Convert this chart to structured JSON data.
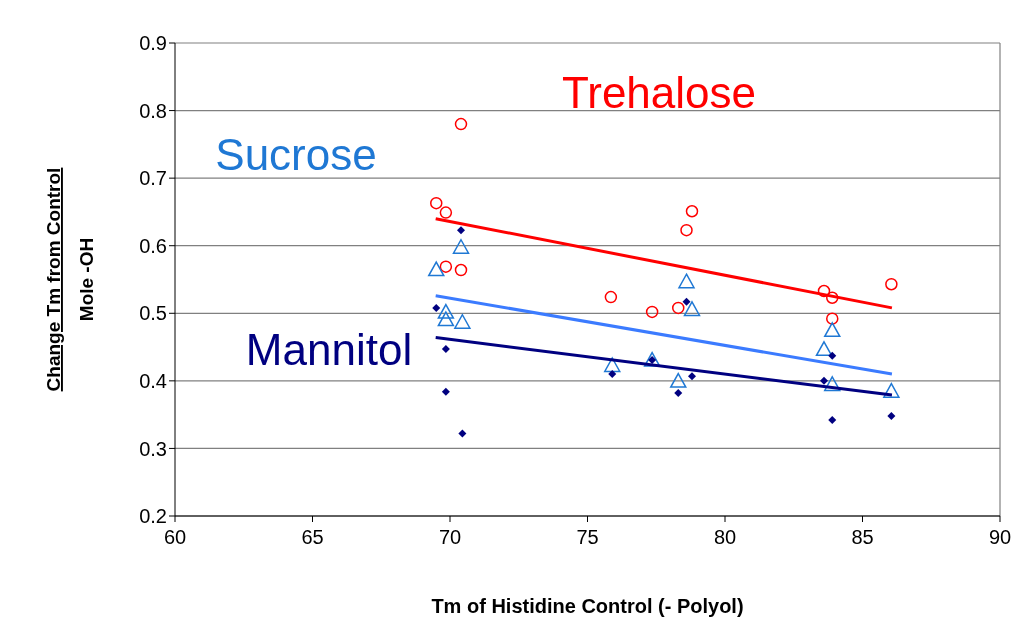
{
  "chart_data": {
    "type": "scatter",
    "xlabel": "Tm of Histidine Control (- Polyol)",
    "ylabel": "Change Tm from Control\nMole -OH",
    "xlim": [
      60,
      90
    ],
    "xticks": [
      60,
      65,
      70,
      75,
      80,
      85,
      90
    ],
    "ylim": [
      0.2,
      0.9
    ],
    "yticks": [
      0.2,
      0.3,
      0.4,
      0.5,
      0.6,
      0.7,
      0.8,
      0.9
    ],
    "grid": "y",
    "legend": false,
    "series": [
      {
        "name": "Trehalose",
        "color": "#ff0000",
        "marker": "circle",
        "x": [
          69.5,
          69.85,
          70.4,
          69.85,
          70.4,
          78.8,
          78.6,
          75.85,
          77.35,
          78.3,
          83.6,
          83.9,
          83.9,
          86.05
        ],
        "values": [
          0.663,
          0.649,
          0.78,
          0.569,
          0.564,
          0.651,
          0.623,
          0.524,
          0.502,
          0.508,
          0.533,
          0.523,
          0.492,
          0.543
        ]
      },
      {
        "name": "Sucrose",
        "color": "#1f78d4",
        "marker": "triangle",
        "x": [
          69.5,
          70.4,
          69.85,
          69.85,
          70.45,
          78.6,
          78.8,
          75.9,
          77.35,
          78.3,
          83.9,
          83.6,
          83.9,
          86.05
        ],
        "values": [
          0.564,
          0.597,
          0.501,
          0.49,
          0.486,
          0.546,
          0.505,
          0.422,
          0.43,
          0.399,
          0.474,
          0.446,
          0.394,
          0.384
        ]
      },
      {
        "name": "Mannitol",
        "color": "#000080",
        "marker": "diamond",
        "x": [
          70.4,
          69.5,
          69.85,
          69.85,
          70.45,
          78.6,
          75.9,
          77.35,
          78.3,
          78.8,
          83.9,
          83.6,
          83.9,
          86.05
        ],
        "values": [
          0.623,
          0.508,
          0.447,
          0.384,
          0.322,
          0.517,
          0.41,
          0.431,
          0.382,
          0.407,
          0.437,
          0.4,
          0.342,
          0.348
        ]
      },
      {
        "type": "line",
        "color": "#ff0000",
        "x": [
          69.48,
          86.07
        ],
        "values": [
          0.64,
          0.508
        ]
      },
      {
        "type": "line",
        "color": "#3b7bff",
        "x": [
          69.48,
          86.07
        ],
        "values": [
          0.526,
          0.41
        ]
      },
      {
        "type": "line",
        "color": "#000080",
        "x": [
          69.48,
          86.07
        ],
        "values": [
          0.464,
          0.379
        ]
      }
    ]
  }
}
